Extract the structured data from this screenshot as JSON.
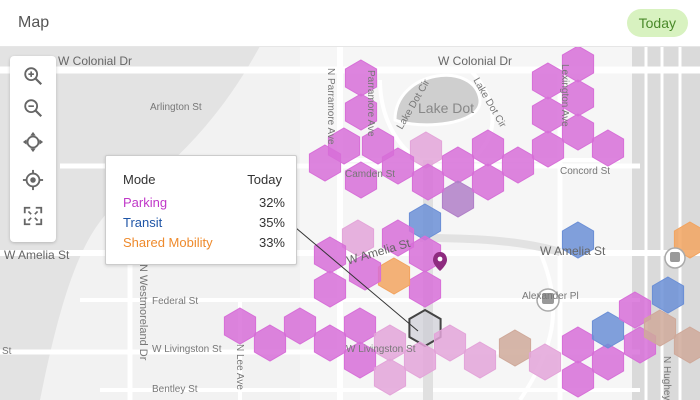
{
  "header": {
    "title": "Map",
    "period_chip": "Today"
  },
  "toolbar": {
    "buttons": [
      {
        "name": "zoom-in",
        "icon": "zoom-in-icon"
      },
      {
        "name": "zoom-out",
        "icon": "zoom-out-icon"
      },
      {
        "name": "pan",
        "icon": "pan-icon"
      },
      {
        "name": "locate",
        "icon": "locate-icon"
      },
      {
        "name": "fullscreen",
        "icon": "fullscreen-icon"
      }
    ]
  },
  "streets": {
    "colonial_left": "W Colonial Dr",
    "colonial_right": "W Colonial Dr",
    "arlington": "Arlington St",
    "parramore": "N Parramore Ave",
    "parramore_short": "Parramore Ave",
    "lake_dot_cir": "Lake Dot Cir",
    "lake_dot_cir_2": "Lake Dot Cir",
    "lake_dot": "Lake Dot",
    "lexington": "Lexington Ave",
    "concord": "Concord St",
    "camden": "Camden St",
    "amelia_left": "W Amelia St",
    "amelia_mid": "W Amelia St",
    "amelia_right": "W Amelia St",
    "westmoreland": "N Westmoreland Dr",
    "federal": "Federal St",
    "livingston": "W Livingston St",
    "livingston_2": "W Livingston St",
    "livingston_left": "St",
    "n_lee": "N Lee Ave",
    "alexander": "Alexander Pl",
    "bentley": "Bentley St",
    "n_hughey": "N Hughey Ave"
  },
  "tooltip": {
    "col_mode": "Mode",
    "col_period": "Today",
    "rows": [
      {
        "mode": "Parking",
        "value": "32%",
        "color": "#c038c8"
      },
      {
        "mode": "Transit",
        "value": "35%",
        "color": "#1f55a6"
      },
      {
        "mode": "Shared Mobility",
        "value": "33%",
        "color": "#ee8a2c"
      }
    ]
  },
  "legend_colors": {
    "parking": "#d76fd8",
    "transit": "#6b8fd6",
    "shared_mobility": "#f2a460",
    "selected_outline": "#444444"
  }
}
